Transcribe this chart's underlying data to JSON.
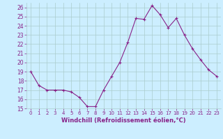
{
  "x": [
    0,
    1,
    2,
    3,
    4,
    5,
    6,
    7,
    8,
    9,
    10,
    11,
    12,
    13,
    14,
    15,
    16,
    17,
    18,
    19,
    20,
    21,
    22,
    23
  ],
  "y": [
    19.0,
    17.5,
    17.0,
    17.0,
    17.0,
    16.8,
    16.2,
    15.2,
    15.2,
    17.0,
    18.5,
    20.0,
    22.2,
    24.8,
    24.7,
    26.2,
    25.2,
    23.8,
    24.8,
    23.0,
    21.5,
    20.3,
    19.2,
    18.5
  ],
  "line_color": "#882288",
  "marker": "+",
  "marker_size": 3,
  "xlabel": "Windchill (Refroidissement éolien,°C)",
  "xlim": [
    -0.5,
    23.5
  ],
  "ylim": [
    15,
    26.5
  ],
  "yticks": [
    15,
    16,
    17,
    18,
    19,
    20,
    21,
    22,
    23,
    24,
    25,
    26
  ],
  "xticks": [
    0,
    1,
    2,
    3,
    4,
    5,
    6,
    7,
    8,
    9,
    10,
    11,
    12,
    13,
    14,
    15,
    16,
    17,
    18,
    19,
    20,
    21,
    22,
    23
  ],
  "bg_color": "#cceeff",
  "grid_color": "#aacccc",
  "xlabel_color": "#882288",
  "tick_color": "#882288"
}
